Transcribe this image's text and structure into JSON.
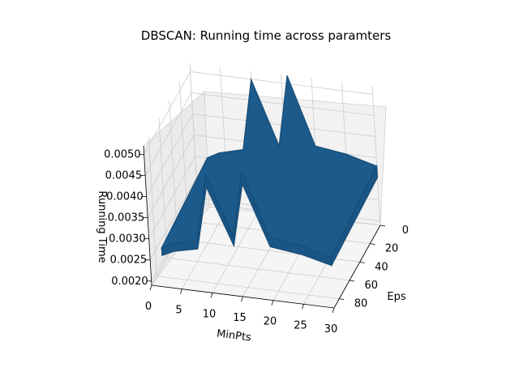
{
  "chart_data": {
    "type": "surface3d",
    "title": "DBSCAN: Running time across paramters",
    "xlabel": "MinPts",
    "ylabel": "Eps",
    "zlabel": "Running Time",
    "x_ticks": [
      0,
      5,
      10,
      15,
      20,
      25,
      30
    ],
    "y_ticks": [
      0,
      20,
      40,
      60,
      80
    ],
    "z_ticks": [
      "0.0020",
      "0.0025",
      "0.0030",
      "0.0035",
      "0.0040",
      "0.0045",
      "0.0050"
    ],
    "x_range": [
      0,
      30
    ],
    "y_range": [
      0,
      90
    ],
    "z_range": [
      0.0019,
      0.0052
    ],
    "grid": true,
    "surface_color": "#1b5a8a",
    "surface_edge_color": "#164b74",
    "surface_summary": [
      {
        "minpts": 2,
        "eps_start": 0,
        "eps_end": 90,
        "running_time": 0.003
      },
      {
        "minpts": 4,
        "eps_start": 0,
        "eps_end": 90,
        "running_time": 0.00315
      },
      {
        "minpts": 8,
        "eps_start": 0,
        "eps_end": 90,
        "running_time": 0.0033
      },
      {
        "minpts": 10,
        "eps_start": 0,
        "eps_end": 90,
        "running_time": 0.005
      },
      {
        "minpts": 14,
        "eps_start": 0,
        "eps_end": 90,
        "running_time": 0.0035
      },
      {
        "minpts": 16,
        "eps_start": 0,
        "eps_end": 90,
        "running_time": 0.0052
      },
      {
        "minpts": 20,
        "eps_start": 0,
        "eps_end": 90,
        "running_time": 0.0036
      },
      {
        "minpts": 25,
        "eps_start": 0,
        "eps_end": 90,
        "running_time": 0.0035
      },
      {
        "minpts": 30,
        "eps_start": 0,
        "eps_end": 90,
        "running_time": 0.0033
      }
    ]
  }
}
